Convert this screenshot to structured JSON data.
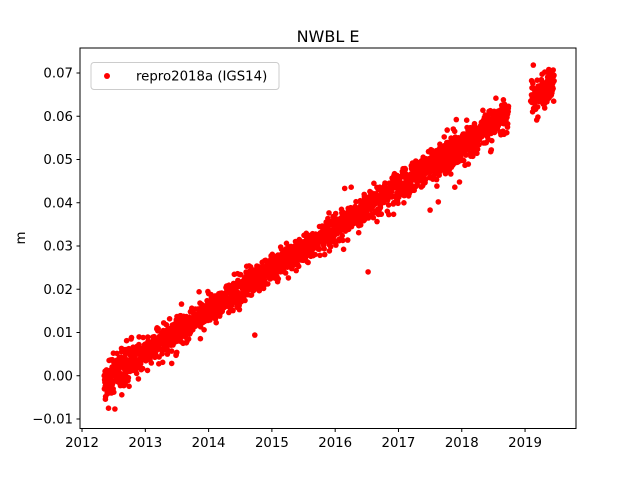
{
  "chart_data": {
    "type": "scatter",
    "title": "NWBL E",
    "xlabel": "",
    "ylabel": "m",
    "xlim": [
      2011.968,
      2019.805
    ],
    "ylim": [
      -0.0122,
      0.07578
    ],
    "grid": false,
    "xticks": [
      2012,
      2013,
      2014,
      2015,
      2016,
      2017,
      2018,
      2019
    ],
    "xtick_labels": [
      "2012",
      "2013",
      "2014",
      "2015",
      "2016",
      "2017",
      "2018",
      "2019"
    ],
    "yticks": [
      -0.01,
      0.0,
      0.01,
      0.02,
      0.03,
      0.04,
      0.05,
      0.06,
      0.07
    ],
    "ytick_labels": [
      "−0.01",
      "0.00",
      "0.01",
      "0.02",
      "0.03",
      "0.04",
      "0.05",
      "0.06",
      "0.07"
    ],
    "legend": {
      "position": "upper left",
      "entries": [
        {
          "label": "repro2018a (IGS14)",
          "color": "#ff0000",
          "marker": "circle"
        }
      ]
    },
    "series": [
      {
        "name": "repro2018a (IGS14)",
        "color": "#ff0000",
        "marker": "circle",
        "marker_radius_px": 2.8,
        "seed": 7,
        "trend": {
          "x0": 2012.35,
          "y0": -0.0008,
          "slope_per_year": 0.00957
        },
        "noise": {
          "outlier_prob": 0.055,
          "outlier_extra_sigma": 0.0026
        },
        "segments": [
          {
            "x0": 2012.35,
            "x1": 2012.75,
            "sigma": 0.0023,
            "points_per_year": 380
          },
          {
            "x0": 2012.75,
            "x1": 2017.72,
            "sigma": 0.00165,
            "points_per_year": 345
          },
          {
            "x0": 2017.72,
            "x1": 2017.98,
            "sigma": 0.0021,
            "points_per_year": 520
          },
          {
            "x0": 2017.98,
            "x1": 2018.74,
            "sigma": 0.0019,
            "points_per_year": 345
          },
          {
            "x0": 2019.1,
            "x1": 2019.46,
            "sigma": 0.0017,
            "points_per_year": 430
          }
        ],
        "outliers": [
          [
            2012.52,
            -0.0077
          ],
          [
            2014.73,
            0.0094
          ],
          [
            2016.52,
            0.024
          ],
          [
            2017.5,
            0.0383
          ],
          [
            2017.63,
            0.0402
          ],
          [
            2017.89,
            0.0436
          ],
          [
            2019.09,
            0.0635
          ]
        ]
      }
    ],
    "colors": {
      "marker": "#ff0000",
      "axes": "#000000",
      "legend_edge": "#cccccc",
      "background": "#ffffff"
    }
  }
}
